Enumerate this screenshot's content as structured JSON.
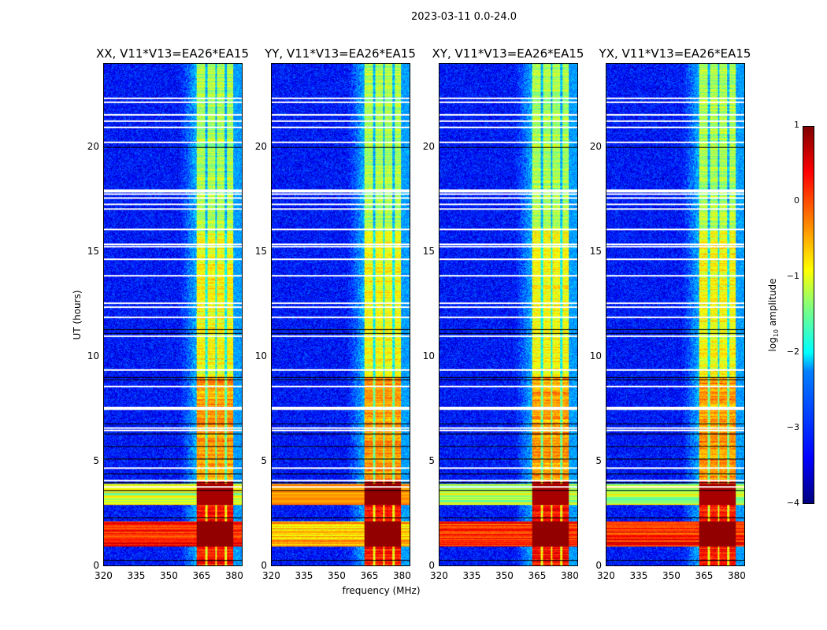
{
  "title": "2023-03-11 0.0-24.0",
  "chart_data": {
    "type": "heatmap",
    "title": "2023-03-11 0.0-24.0",
    "xlabel": "frequency (MHz)",
    "ylabel": "UT (hours)",
    "xlim": [
      320,
      384
    ],
    "ylim": [
      0,
      24
    ],
    "xticks": [
      "320",
      "335",
      "350",
      "365",
      "380"
    ],
    "xtick_values": [
      320,
      335,
      350,
      365,
      380
    ],
    "yticks": [
      "0",
      "5",
      "10",
      "15",
      "20"
    ],
    "ytick_values": [
      0,
      5,
      10,
      15,
      20
    ],
    "panels": [
      {
        "title": "XX, V11*V13=EA26*EA15"
      },
      {
        "title": "YY, V11*V13=EA26*EA15"
      },
      {
        "title": "XY, V11*V13=EA26*EA15"
      },
      {
        "title": "YX, V11*V13=EA26*EA15"
      }
    ],
    "emission_band_mhz": [
      363,
      380
    ],
    "band_gaps_mhz": [
      367.5,
      372,
      376.5
    ],
    "rfi_hours": [
      [
        0.9,
        2.1
      ],
      [
        2.9,
        3.9
      ]
    ],
    "flagged_hours": [
      22.4,
      22.2,
      21.6,
      21.3,
      21.0,
      20.3,
      18.0,
      17.9,
      17.8,
      17.6,
      17.3,
      17.1,
      16.1,
      15.4,
      15.3,
      14.7,
      13.9,
      12.6,
      12.4,
      11.9,
      11.0,
      9.4,
      8.6,
      7.6,
      7.5,
      6.6,
      6.5,
      4.7,
      4.1,
      3.8
    ],
    "dark_hours": [
      20.0,
      11.3,
      11.1,
      9.0,
      8.9,
      6.8,
      6.3,
      5.7,
      5.1,
      4.4,
      4.0,
      3.6,
      2.3,
      0.25
    ],
    "colorbar": {
      "label": "log10 amplitude",
      "range": [
        -4,
        1
      ],
      "ticks": [
        "1",
        "0",
        "−1",
        "−2",
        "−3",
        "−4"
      ],
      "tick_values": [
        1,
        0,
        -1,
        -2,
        -3,
        -4
      ]
    }
  }
}
